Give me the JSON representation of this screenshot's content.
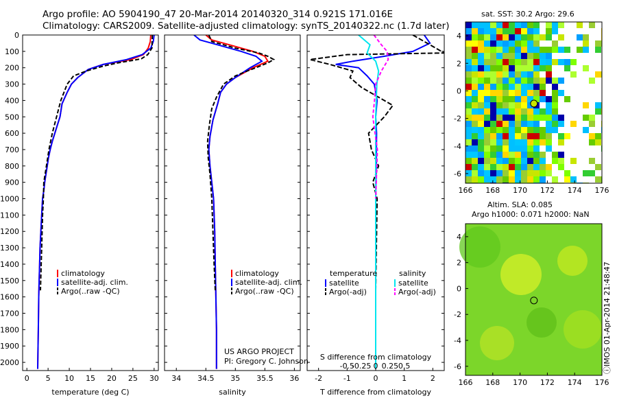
{
  "header": {
    "line1": "Argo profile: AO 5904190_47 20-Mar-2014 20140320_314 0.921S 171.016E",
    "line2": "Climatology: CARS2009. Satellite-adjusted climatology: synTS_20140322.nc (1.7d later)"
  },
  "panels": {
    "temperature": {
      "xlabel": "temperature (deg C)",
      "xticks": [
        "0",
        "5",
        "10",
        "15",
        "20",
        "25",
        "30"
      ],
      "legend": [
        "climatology",
        "satellite-adj. clim.",
        "Argo(..raw -QC)"
      ]
    },
    "salinity": {
      "xlabel": "salinity",
      "xticks": [
        "34",
        "34.5",
        "35",
        "35.5",
        "36"
      ],
      "legend": [
        "climatology",
        "satellite-adj. clim.",
        "Argo(..raw -QC)"
      ],
      "project": "US ARGO PROJECT",
      "pi": "PI: Gregory C. Johnson"
    },
    "difference": {
      "xlabel": "T difference from climatology",
      "top_label": "S difference from climatology",
      "xticks_T": [
        "-2",
        "-1",
        "0",
        "1",
        "2"
      ],
      "xticks_S": [
        "-0.5",
        "-0.25",
        "0",
        "0.25",
        "0.5"
      ],
      "legend_t_title": "temperature",
      "legend_s_title": "salinity",
      "legend_t": [
        "satellite",
        "Argo(-adj)"
      ],
      "legend_s": [
        "satellite",
        "Argo(-adj)"
      ]
    }
  },
  "depth_ticks": [
    "0",
    "100",
    "200",
    "300",
    "400",
    "500",
    "600",
    "700",
    "800",
    "900",
    "1000",
    "1100",
    "1200",
    "1300",
    "1400",
    "1500",
    "1600",
    "1700",
    "1800",
    "1900",
    "2000"
  ],
  "maps": {
    "sst_title": "sat. SST: 30.2  Argo: 29.6",
    "sla_title1": "Altim. SLA: 0.085",
    "sla_title2": "Argo h1000: 0.071  h2000: NaN",
    "x_ticks": [
      "166",
      "168",
      "170",
      "172",
      "174",
      "176"
    ],
    "y_ticks": [
      "4",
      "2",
      "0",
      "-2",
      "-4",
      "-6"
    ]
  },
  "credit": "ⓘIMOS 01-Apr-2014 21:48:47",
  "colors": {
    "climatology": "#ff0000",
    "satellite": "#0000ff",
    "argo": "#000000",
    "sat_salt": "#00e5ee",
    "argo_salt": "#ff00ff"
  },
  "chart_data": [
    {
      "type": "line",
      "xlabel": "temperature (deg C)",
      "ylabel": "",
      "xlim": [
        -1,
        31
      ],
      "ylim": [
        2050,
        0
      ],
      "series": [
        {
          "name": "climatology",
          "x": [
            29.2,
            29.1,
            28.6,
            27.5,
            24.5,
            18.0,
            14.5,
            12.0,
            10.5,
            9.5,
            8.3,
            7.8,
            7.2,
            6.6,
            6.0,
            5.5,
            5.1,
            4.8,
            4.5,
            4.2,
            4.0,
            3.7,
            3.5,
            3.3,
            3.1,
            3.0,
            2.9,
            2.8,
            2.7,
            2.6,
            2.55
          ],
          "y": [
            0,
            40,
            80,
            120,
            150,
            180,
            210,
            260,
            300,
            350,
            420,
            500,
            550,
            600,
            650,
            700,
            750,
            800,
            850,
            900,
            950,
            1000,
            1100,
            1200,
            1300,
            1400,
            1500,
            1600,
            1800,
            1950,
            2040
          ]
        },
        {
          "name": "satellite-adj. clim.",
          "x": [
            30.0,
            29.8,
            29.2,
            27.2,
            23.5,
            18.0,
            14.5,
            12.0,
            10.5,
            9.5,
            8.3,
            7.8,
            7.2,
            6.6,
            6.0,
            5.5,
            5.1,
            4.8,
            4.5,
            4.2,
            4.0,
            3.7,
            3.5,
            3.3,
            3.1,
            3.0,
            2.9,
            2.8,
            2.7,
            2.6,
            2.55
          ],
          "y": [
            0,
            40,
            80,
            120,
            150,
            180,
            210,
            260,
            300,
            350,
            420,
            500,
            550,
            600,
            650,
            700,
            750,
            800,
            850,
            900,
            950,
            1000,
            1100,
            1200,
            1300,
            1400,
            1500,
            1600,
            1800,
            1950,
            2040
          ]
        },
        {
          "name": "Argo(..raw -QC)",
          "x": [
            29.6,
            29.5,
            29.6,
            28.5,
            27.0,
            25.0,
            21.5,
            18.0,
            14.0,
            11.0,
            9.5,
            8.0,
            7.0,
            6.0,
            5.2,
            4.6,
            4.3,
            4.0,
            3.9,
            3.7,
            3.5,
            3.2
          ],
          "y": [
            0,
            50,
            75,
            120,
            145,
            155,
            170,
            190,
            220,
            250,
            300,
            400,
            500,
            600,
            700,
            800,
            850,
            900,
            1000,
            1100,
            1300,
            1560
          ]
        }
      ]
    },
    {
      "type": "line",
      "xlabel": "salinity",
      "ylabel": "",
      "xlim": [
        33.8,
        36.1
      ],
      "ylim": [
        2050,
        0
      ],
      "series": [
        {
          "name": "climatology",
          "x": [
            34.5,
            34.6,
            34.9,
            35.3,
            35.5,
            35.55,
            35.3,
            35.0,
            34.85,
            34.75,
            34.7,
            34.62,
            34.57,
            34.55,
            34.57,
            34.6,
            34.63,
            34.65,
            34.66,
            34.67,
            34.68,
            34.68
          ],
          "y": [
            0,
            30,
            60,
            100,
            130,
            160,
            200,
            260,
            300,
            350,
            420,
            520,
            620,
            700,
            800,
            900,
            1000,
            1200,
            1400,
            1600,
            1800,
            2040
          ]
        },
        {
          "name": "satellite-adj. clim.",
          "x": [
            34.3,
            34.4,
            34.7,
            35.1,
            35.35,
            35.45,
            35.25,
            35.0,
            34.85,
            34.75,
            34.7,
            34.62,
            34.57,
            34.55,
            34.57,
            34.6,
            34.63,
            34.65,
            34.66,
            34.67,
            34.68,
            34.68
          ],
          "y": [
            0,
            30,
            60,
            100,
            130,
            160,
            200,
            260,
            300,
            350,
            420,
            520,
            620,
            700,
            800,
            900,
            1000,
            1200,
            1400,
            1600,
            1800,
            2040
          ]
        },
        {
          "name": "Argo(..raw -QC)",
          "x": [
            34.55,
            34.6,
            35.0,
            35.4,
            35.55,
            35.65,
            35.55,
            35.35,
            35.2,
            35.0,
            34.8,
            34.68,
            34.6,
            34.56,
            34.53,
            34.54,
            34.57,
            34.6,
            34.62,
            34.64,
            34.66
          ],
          "y": [
            0,
            40,
            80,
            110,
            130,
            150,
            170,
            200,
            220,
            250,
            300,
            380,
            450,
            550,
            650,
            750,
            850,
            1000,
            1200,
            1400,
            1560
          ]
        }
      ]
    },
    {
      "type": "line",
      "xlabel": "T difference from climatology",
      "ylabel": "",
      "xlim": [
        -2.4,
        2.4
      ],
      "ylim": [
        2050,
        0
      ],
      "series": [
        {
          "name": "temperature satellite",
          "x": [
            1.7,
            1.9,
            1.3,
            0.3,
            -0.8,
            -1.4,
            -0.6,
            -0.3,
            -0.05,
            0.05,
            0.0,
            0.03,
            0.02,
            0.0,
            0.0,
            0.0,
            0.0
          ],
          "y": [
            0,
            50,
            100,
            130,
            160,
            180,
            200,
            250,
            300,
            400,
            500,
            600,
            800,
            1000,
            1400,
            1800,
            2040
          ]
        },
        {
          "name": "temperature Argo(-adj)",
          "x": [
            1.3,
            1.8,
            2.4,
            -1.0,
            -2.3,
            -1.6,
            -0.8,
            -0.9,
            -0.5,
            0.6,
            0.3,
            -0.25,
            -0.15,
            0.1,
            -0.1,
            0.05,
            0.0
          ],
          "y": [
            0,
            50,
            110,
            120,
            150,
            180,
            220,
            260,
            320,
            430,
            500,
            600,
            700,
            800,
            900,
            1000,
            1560
          ]
        },
        {
          "name": "salinity satellite",
          "x": [
            -0.3,
            -0.1,
            -0.15,
            0.0,
            0.05,
            0.02,
            0.0,
            0.0,
            0.0,
            0.0,
            0.0
          ],
          "y": [
            0,
            60,
            110,
            160,
            220,
            300,
            500,
            800,
            1200,
            1600,
            2040
          ]
        },
        {
          "name": "salinity Argo(-adj)",
          "x": [
            -0.03,
            0.1,
            0.2,
            0.22,
            0.1,
            0.0,
            -0.02,
            -0.05,
            0.03,
            0.0
          ],
          "y": [
            0,
            60,
            100,
            150,
            220,
            300,
            400,
            500,
            700,
            1000
          ]
        }
      ]
    }
  ]
}
